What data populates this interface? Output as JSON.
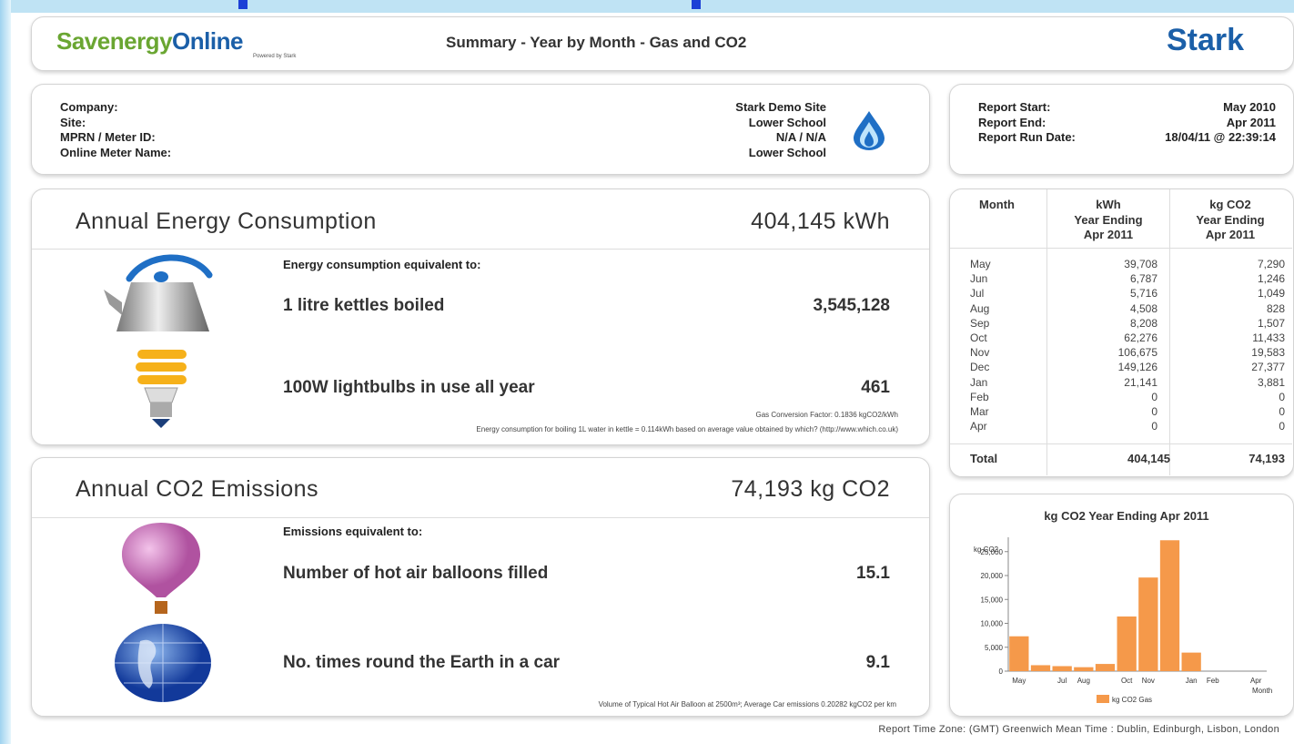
{
  "header": {
    "logo": {
      "part1": "Savenergy",
      "part2": "Online",
      "tagline": "Powered by Stark"
    },
    "title": "Summary - Year by Month - Gas and CO2",
    "brand": "Stark"
  },
  "site_info": {
    "labels": [
      "Company:",
      "Site:",
      "MPRN / Meter ID:",
      "Online Meter Name:"
    ],
    "values": [
      "Stark Demo Site",
      "Lower School",
      "N/A / N/A",
      "Lower School"
    ]
  },
  "report_info": {
    "labels": [
      "Report Start:",
      "Report End:",
      "Report Run Date:"
    ],
    "values": [
      "May 2010",
      "Apr 2011",
      "18/04/11 @ 22:39:14"
    ]
  },
  "energy": {
    "heading": "Annual Energy Consumption",
    "total": "404,145 kWh",
    "intro": "Energy consumption equivalent to:",
    "items": [
      {
        "label": "1 litre kettles boiled",
        "value": "3,545,128"
      },
      {
        "label": "100W lightbulbs in use all year",
        "value": "461"
      }
    ],
    "notes": [
      "Gas Conversion Factor: 0.1836 kgCO2/kWh",
      "Energy consumption for boiling 1L water in kettle = 0.114kWh based on average value obtained by which? (http://www.which.co.uk)"
    ]
  },
  "co2": {
    "heading": "Annual CO2 Emissions",
    "total": "74,193 kg CO2",
    "intro": "Emissions equivalent to:",
    "items": [
      {
        "label": "Number of hot air balloons filled",
        "value": "15.1"
      },
      {
        "label": "No. times round the Earth in a car",
        "value": "9.1"
      }
    ],
    "notes": [
      "Volume of Typical Hot Air Balloon at 2500m³; Average Car emissions 0.20282 kgCO2 per km"
    ]
  },
  "table": {
    "headers": [
      "Month",
      [
        "kWh",
        "Year Ending",
        "Apr 2011"
      ],
      [
        "kg CO2",
        "Year Ending",
        "Apr 2011"
      ]
    ],
    "rows": [
      [
        "May",
        "39,708",
        "7,290"
      ],
      [
        "Jun",
        "6,787",
        "1,246"
      ],
      [
        "Jul",
        "5,716",
        "1,049"
      ],
      [
        "Aug",
        "4,508",
        "828"
      ],
      [
        "Sep",
        "8,208",
        "1,507"
      ],
      [
        "Oct",
        "62,276",
        "11,433"
      ],
      [
        "Nov",
        "106,675",
        "19,583"
      ],
      [
        "Dec",
        "149,126",
        "27,377"
      ],
      [
        "Jan",
        "21,141",
        "3,881"
      ],
      [
        "Feb",
        "0",
        "0"
      ],
      [
        "Mar",
        "0",
        "0"
      ],
      [
        "Apr",
        "0",
        "0"
      ]
    ],
    "total": [
      "Total",
      "404,145",
      "74,193"
    ]
  },
  "chart_data": {
    "type": "bar",
    "title": "kg CO2 Year Ending Apr 2011",
    "y_label": "kg CO2",
    "x_label": "Month",
    "categories": [
      "May",
      null,
      "Jul",
      "Aug",
      null,
      "Oct",
      "Nov",
      null,
      "Jan",
      "Feb",
      null,
      "Apr"
    ],
    "series": [
      {
        "name": "kg CO2 Gas",
        "color": "#f5994a",
        "values": [
          7290,
          1246,
          1049,
          828,
          1507,
          11433,
          19583,
          27377,
          3881,
          0,
          0,
          0
        ]
      }
    ],
    "ylim": [
      0,
      28000
    ],
    "yticks": [
      0,
      {
        "value": 5000,
        "label": "5,000"
      },
      {
        "value": 10000,
        "label": "10,000"
      },
      {
        "value": 15000,
        "label": "15,000"
      },
      {
        "value": 20000,
        "label": "20,000"
      },
      {
        "value": 25000,
        "label": "25,000"
      }
    ],
    "legend": "bottom"
  },
  "footer": "Report Time Zone: (GMT) Greenwich Mean Time : Dublin, Edinburgh, Lisbon, London"
}
